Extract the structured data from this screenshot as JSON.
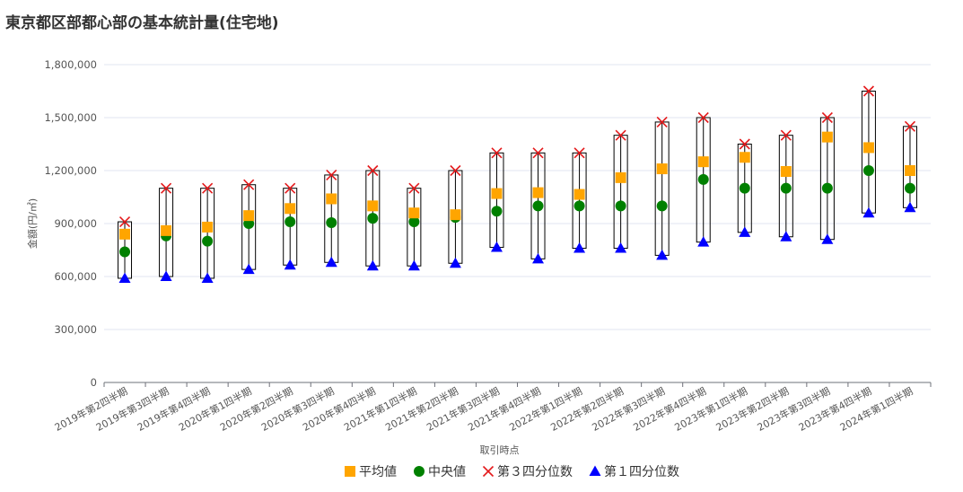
{
  "chart_data": {
    "type": "scatter",
    "title": "東京都区部都心部の基本統計量(住宅地)",
    "xlabel": "取引時点",
    "ylabel": "金額(円/㎡)",
    "ylim": [
      0,
      1800000
    ],
    "yticks": [
      0,
      300000,
      600000,
      900000,
      1200000,
      1500000,
      1800000
    ],
    "ytick_labels": [
      "0",
      "300,000",
      "600,000",
      "900,000",
      "1,200,000",
      "1,500,000",
      "1,800,000"
    ],
    "grid": true,
    "legend_position": "bottom",
    "categories": [
      "2019年第2四半期",
      "2019年第3四半期",
      "2019年第4四半期",
      "2020年第1四半期",
      "2020年第2四半期",
      "2020年第3四半期",
      "2020年第4四半期",
      "2021年第1四半期",
      "2021年第2四半期",
      "2021年第3四半期",
      "2021年第4四半期",
      "2022年第1四半期",
      "2022年第2四半期",
      "2022年第3四半期",
      "2022年第4四半期",
      "2023年第1四半期",
      "2023年第2四半期",
      "2023年第3四半期",
      "2023年第4四半期",
      "2024年第1四半期"
    ],
    "series": [
      {
        "name": "平均値",
        "marker": "square",
        "color": "#FFA500",
        "values": [
          840000,
          860000,
          880000,
          945000,
          985000,
          1040000,
          1000000,
          960000,
          950000,
          1070000,
          1075000,
          1065000,
          1160000,
          1210000,
          1250000,
          1275000,
          1195000,
          1390000,
          1330000,
          1200000
        ]
      },
      {
        "name": "中央値",
        "marker": "circle",
        "color": "#008000",
        "values": [
          740000,
          830000,
          800000,
          900000,
          910000,
          905000,
          930000,
          910000,
          935000,
          970000,
          1000000,
          1000000,
          1000000,
          1000000,
          1150000,
          1100000,
          1100000,
          1100000,
          1200000,
          1100000
        ]
      },
      {
        "name": "第３四分位数",
        "marker": "x",
        "color": "#E41A1C",
        "values": [
          910000,
          1100000,
          1100000,
          1120000,
          1100000,
          1175000,
          1200000,
          1100000,
          1200000,
          1300000,
          1300000,
          1300000,
          1400000,
          1475000,
          1500000,
          1350000,
          1400000,
          1500000,
          1650000,
          1450000
        ]
      },
      {
        "name": "第１四分位数",
        "marker": "triangle",
        "color": "#0000FF",
        "values": [
          590000,
          600000,
          590000,
          640000,
          665000,
          680000,
          660000,
          660000,
          675000,
          765000,
          700000,
          760000,
          760000,
          720000,
          795000,
          850000,
          825000,
          810000,
          960000,
          990000
        ]
      }
    ]
  },
  "colors": {
    "box_stroke": "#000000",
    "grid": "#E0E6F1",
    "axis": "#6E7079"
  }
}
